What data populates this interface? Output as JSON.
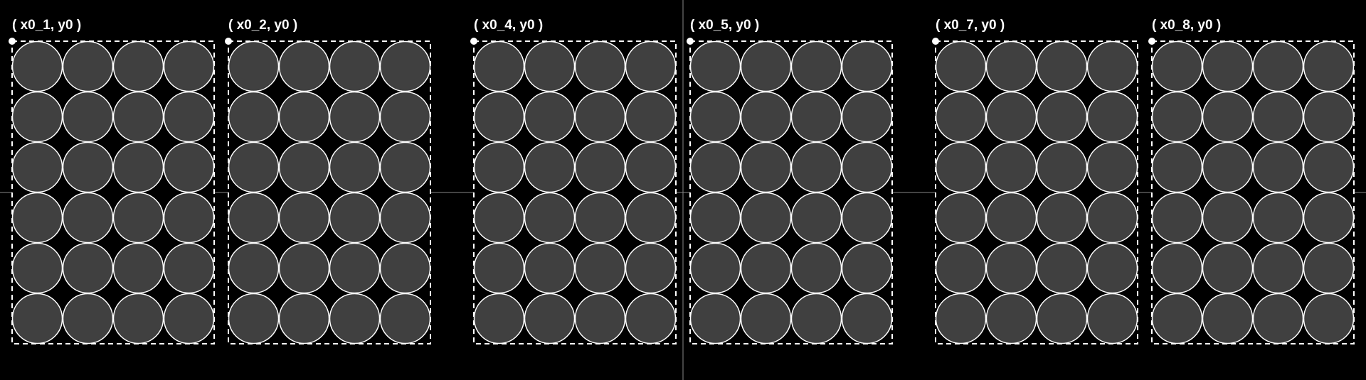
{
  "colors": {
    "background": "#000000",
    "cell_fill": "#404040",
    "stroke": "#ffffff",
    "axis": "#888888"
  },
  "grid": {
    "rows": 6,
    "cols": 4
  },
  "blocks": [
    {
      "label": "( x0_1, y0 )"
    },
    {
      "label": "( x0_2, y0 )"
    },
    {
      "label": "( x0_4, y0 )"
    },
    {
      "label": "( x0_5, y0 )"
    },
    {
      "label": "( x0_7, y0 )"
    },
    {
      "label": "( x0_8, y0 )"
    }
  ]
}
